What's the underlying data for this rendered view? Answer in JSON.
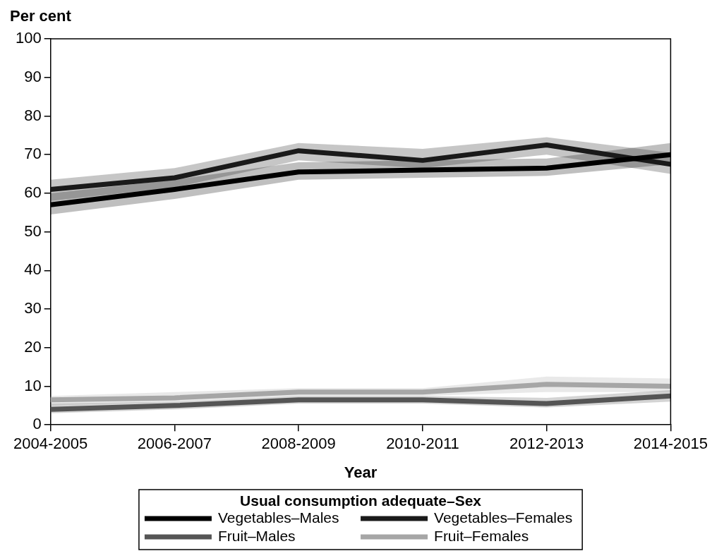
{
  "chart_data": {
    "type": "line",
    "xlabel": "Year",
    "ylabel": "Per cent",
    "legend_title": "Usual consumption adequate–Sex",
    "categories": [
      "2004-2005",
      "2006-2007",
      "2008-2009",
      "2010-2011",
      "2012-2013",
      "2014-2015"
    ],
    "series": [
      {
        "name": "Vegetables–Males",
        "color": "#000000",
        "values": [
          57,
          61,
          65.5,
          66,
          66.5,
          70
        ],
        "lower": [
          54.5,
          58.5,
          63.5,
          64,
          64.5,
          67.5
        ],
        "upper": [
          60,
          63.5,
          68,
          68.5,
          69,
          73
        ]
      },
      {
        "name": "Vegetables–Females",
        "color": "#1a1a1a",
        "values": [
          61,
          64,
          71,
          68.5,
          72.5,
          67.5
        ],
        "lower": [
          58,
          61.5,
          68.5,
          66.5,
          70,
          65
        ],
        "upper": [
          63.5,
          66.5,
          73,
          71.5,
          74.5,
          70.5
        ]
      },
      {
        "name": "Fruit–Males",
        "color": "#555555",
        "values": [
          4,
          5,
          6.5,
          6.5,
          5.5,
          7.5
        ],
        "lower": [
          3,
          4,
          5.5,
          5.5,
          4.5,
          6
        ],
        "upper": [
          5.5,
          6,
          7.5,
          7.5,
          7,
          9
        ]
      },
      {
        "name": "Fruit–Females",
        "color": "#a6a6a6",
        "values": [
          6.5,
          7,
          8.5,
          8.5,
          10.5,
          10
        ],
        "lower": [
          5,
          6,
          7.5,
          7.5,
          8.5,
          8.5
        ],
        "upper": [
          7.5,
          8.5,
          9.5,
          9.5,
          12.5,
          12
        ]
      }
    ],
    "ylim": [
      0,
      100
    ],
    "yticks": [
      0,
      10,
      20,
      30,
      40,
      50,
      60,
      70,
      80,
      90,
      100
    ],
    "grid": false,
    "legend": "bottom",
    "marker": "none",
    "line_style": "solid"
  }
}
